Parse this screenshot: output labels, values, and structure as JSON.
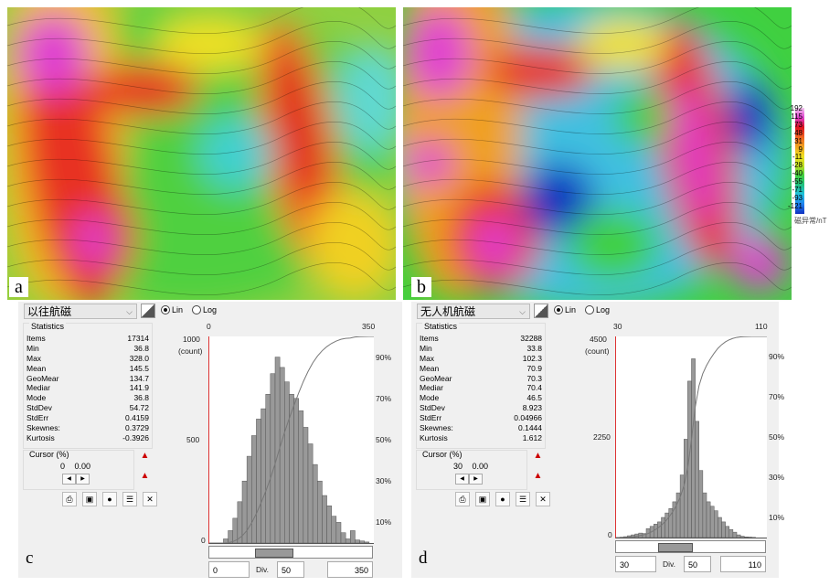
{
  "panels": {
    "a": "a",
    "b": "b",
    "c": "c",
    "d": "d"
  },
  "colorbar": {
    "ticks": [
      "192",
      "115",
      "73",
      "48",
      "31",
      "9",
      "-11",
      "-28",
      "-40",
      "-55",
      "-71",
      "-93",
      "-121"
    ],
    "label": "磁异常/nT"
  },
  "c": {
    "dataset": "以往航磁",
    "lin": "Lin",
    "log": "Log",
    "stats_title": "Statistics",
    "stats": [
      [
        "Items",
        "17314"
      ],
      [
        "Min",
        "36.8"
      ],
      [
        "Max",
        "328.0"
      ],
      [
        "Mean",
        "145.5"
      ],
      [
        "GeoMear",
        "134.7"
      ],
      [
        "Mediar",
        "141.9"
      ],
      [
        "Mode",
        "36.8"
      ],
      [
        "StdDev",
        "54.72"
      ],
      [
        "StdErr",
        "0.4159"
      ],
      [
        "Skewnes:",
        "0.3729"
      ],
      [
        "Kurtosis",
        "-0.3926"
      ]
    ],
    "cursor_title": "Cursor (%)",
    "cursor_pos": "0",
    "cursor_val": "0.00",
    "axis_top_min": "0",
    "axis_top_max": "350",
    "y_max": "1000",
    "y_unit": "(count)",
    "y_mid": "500",
    "y_zero": "0",
    "pct": [
      "90%",
      "70%",
      "50%",
      "30%",
      "10%"
    ],
    "min_box": "0",
    "div_label": "Div.",
    "div_box": "50",
    "max_box": "350"
  },
  "d": {
    "dataset": "无人机航磁",
    "lin": "Lin",
    "log": "Log",
    "stats_title": "Statistics",
    "stats": [
      [
        "Items",
        "32288"
      ],
      [
        "Min",
        "33.8"
      ],
      [
        "Max",
        "102.3"
      ],
      [
        "Mean",
        "70.9"
      ],
      [
        "GeoMear",
        "70.3"
      ],
      [
        "Mediar",
        "70.4"
      ],
      [
        "Mode",
        "46.5"
      ],
      [
        "StdDev",
        "8.923"
      ],
      [
        "StdErr",
        "0.04966"
      ],
      [
        "Skewnes:",
        "0.1444"
      ],
      [
        "Kurtosis",
        "1.612"
      ]
    ],
    "cursor_title": "Cursor (%)",
    "cursor_pos": "30",
    "cursor_val": "0.00",
    "axis_top_min": "30",
    "axis_top_max": "110",
    "y_max": "4500",
    "y_unit": "(count)",
    "y_mid": "2250",
    "y_zero": "0",
    "pct": [
      "90%",
      "70%",
      "50%",
      "30%",
      "10%"
    ],
    "min_box": "30",
    "div_label": "Div.",
    "div_box": "50",
    "max_box": "110"
  },
  "chart_data": [
    {
      "type": "bar",
      "title": "以往航磁",
      "xlim": [
        0,
        350
      ],
      "ylim": [
        0,
        1000
      ],
      "bin_width": 10,
      "x": [
        0,
        10,
        20,
        30,
        40,
        50,
        60,
        70,
        80,
        90,
        100,
        110,
        120,
        130,
        140,
        150,
        160,
        170,
        180,
        190,
        200,
        210,
        220,
        230,
        240,
        250,
        260,
        270,
        280,
        290,
        300,
        310,
        320,
        330,
        340
      ],
      "values": [
        0,
        0,
        0,
        20,
        60,
        120,
        200,
        300,
        420,
        520,
        600,
        650,
        720,
        820,
        900,
        850,
        780,
        720,
        700,
        640,
        560,
        480,
        380,
        300,
        230,
        180,
        130,
        100,
        50,
        20,
        60,
        15,
        10,
        5,
        0
      ]
    },
    {
      "type": "bar",
      "title": "无人机航磁",
      "xlim": [
        30,
        110
      ],
      "ylim": [
        0,
        4500
      ],
      "bin_width": 2,
      "x": [
        30,
        32,
        34,
        36,
        38,
        40,
        42,
        44,
        46,
        48,
        50,
        52,
        54,
        56,
        58,
        60,
        62,
        64,
        66,
        68,
        70,
        72,
        74,
        76,
        78,
        80,
        82,
        84,
        86,
        88,
        90,
        92,
        94,
        96,
        98,
        100,
        102,
        104,
        106,
        108
      ],
      "values": [
        0,
        10,
        20,
        40,
        60,
        80,
        100,
        90,
        200,
        250,
        300,
        350,
        450,
        550,
        650,
        800,
        1000,
        1400,
        2200,
        3500,
        4000,
        2600,
        1500,
        1000,
        800,
        700,
        600,
        450,
        350,
        250,
        180,
        120,
        60,
        30,
        15,
        10,
        5,
        0,
        0,
        0
      ]
    }
  ]
}
